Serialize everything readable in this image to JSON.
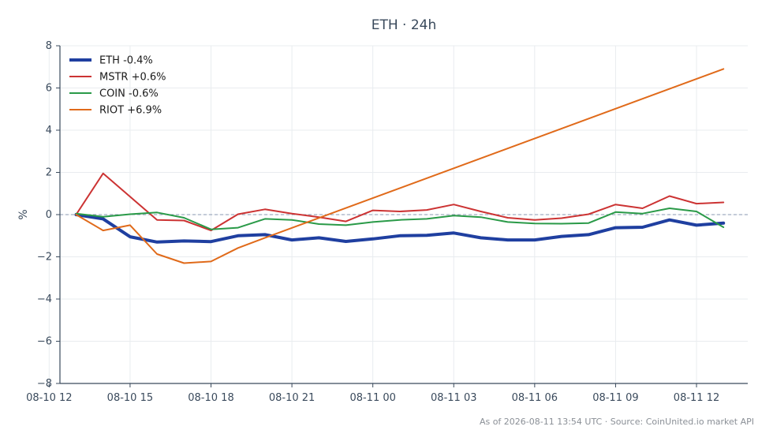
{
  "chart_data": {
    "type": "line",
    "title": "ETH · 24h",
    "ylabel": "%",
    "xlabel": "",
    "xlim": [
      "2026-08-10T12:24",
      "2026-08-11T13:54"
    ],
    "ylim": [
      -8,
      8
    ],
    "yticks": [
      -8,
      -6,
      -4,
      -2,
      0,
      2,
      4,
      6,
      8
    ],
    "xticks": [
      {
        "t": "2026-08-10T12:00",
        "label": "08-10 12"
      },
      {
        "t": "2026-08-10T15:00",
        "label": "08-10 15"
      },
      {
        "t": "2026-08-10T18:00",
        "label": "08-10 18"
      },
      {
        "t": "2026-08-10T21:00",
        "label": "08-10 21"
      },
      {
        "t": "2026-08-11T00:00",
        "label": "08-11 00"
      },
      {
        "t": "2026-08-11T03:00",
        "label": "08-11 03"
      },
      {
        "t": "2026-08-11T06:00",
        "label": "08-11 06"
      },
      {
        "t": "2026-08-11T09:00",
        "label": "08-11 09"
      },
      {
        "t": "2026-08-11T12:00",
        "label": "08-11 12"
      }
    ],
    "grid": true,
    "baseline": 0,
    "legend_position": "top-left",
    "series": [
      {
        "name": "ETH -0.4%",
        "color": "#1f3fa0",
        "x": [
          "2026-08-10T13:00",
          "2026-08-10T14:00",
          "2026-08-10T15:00",
          "2026-08-10T16:00",
          "2026-08-10T17:00",
          "2026-08-10T18:00",
          "2026-08-10T19:00",
          "2026-08-10T20:00",
          "2026-08-10T21:00",
          "2026-08-10T22:00",
          "2026-08-10T23:00",
          "2026-08-11T00:00",
          "2026-08-11T01:00",
          "2026-08-11T02:00",
          "2026-08-11T03:00",
          "2026-08-11T04:00",
          "2026-08-11T05:00",
          "2026-08-11T06:00",
          "2026-08-11T07:00",
          "2026-08-11T08:00",
          "2026-08-11T09:00",
          "2026-08-11T10:00",
          "2026-08-11T11:00",
          "2026-08-11T12:00",
          "2026-08-11T13:00"
        ],
        "values": [
          0.0,
          -0.2,
          -1.05,
          -1.3,
          -1.25,
          -1.28,
          -1.0,
          -0.95,
          -1.2,
          -1.1,
          -1.27,
          -1.15,
          -1.0,
          -0.98,
          -0.87,
          -1.1,
          -1.2,
          -1.2,
          -1.03,
          -0.95,
          -0.62,
          -0.6,
          -0.25,
          -0.5,
          -0.4
        ]
      },
      {
        "name": "MSTR +0.6%",
        "color": "#cc3333",
        "x": [
          "2026-08-10T13:00",
          "2026-08-10T14:00",
          "2026-08-10T15:00",
          "2026-08-10T16:00",
          "2026-08-10T17:00",
          "2026-08-10T18:00",
          "2026-08-10T19:00",
          "2026-08-10T20:00",
          "2026-08-10T21:00",
          "2026-08-10T22:00",
          "2026-08-10T23:00",
          "2026-08-11T00:00",
          "2026-08-11T01:00",
          "2026-08-11T02:00",
          "2026-08-11T03:00",
          "2026-08-11T04:00",
          "2026-08-11T05:00",
          "2026-08-11T06:00",
          "2026-08-11T07:00",
          "2026-08-11T08:00",
          "2026-08-11T09:00",
          "2026-08-11T10:00",
          "2026-08-11T11:00",
          "2026-08-11T12:00",
          "2026-08-11T13:00"
        ],
        "values": [
          0.0,
          1.95,
          0.85,
          -0.25,
          -0.28,
          -0.75,
          0.02,
          0.25,
          0.05,
          -0.12,
          -0.32,
          0.2,
          0.15,
          0.22,
          0.48,
          0.15,
          -0.15,
          -0.25,
          -0.17,
          0.02,
          0.48,
          0.3,
          0.88,
          0.52,
          0.58
        ]
      },
      {
        "name": "COIN -0.6%",
        "color": "#2a9a48",
        "x": [
          "2026-08-10T13:00",
          "2026-08-10T14:00",
          "2026-08-10T15:00",
          "2026-08-10T16:00",
          "2026-08-10T17:00",
          "2026-08-10T18:00",
          "2026-08-10T19:00",
          "2026-08-10T20:00",
          "2026-08-10T21:00",
          "2026-08-10T22:00",
          "2026-08-10T23:00",
          "2026-08-11T00:00",
          "2026-08-11T01:00",
          "2026-08-11T02:00",
          "2026-08-11T03:00",
          "2026-08-11T04:00",
          "2026-08-11T05:00",
          "2026-08-11T06:00",
          "2026-08-11T07:00",
          "2026-08-11T08:00",
          "2026-08-11T09:00",
          "2026-08-11T10:00",
          "2026-08-11T11:00",
          "2026-08-11T12:00",
          "2026-08-11T13:00"
        ],
        "values": [
          0.05,
          -0.1,
          0.02,
          0.1,
          -0.15,
          -0.7,
          -0.62,
          -0.2,
          -0.25,
          -0.45,
          -0.5,
          -0.35,
          -0.25,
          -0.2,
          -0.05,
          -0.12,
          -0.35,
          -0.42,
          -0.43,
          -0.4,
          0.12,
          0.05,
          0.3,
          0.15,
          -0.6
        ]
      },
      {
        "name": "RIOT +6.9%",
        "color": "#e06a1a",
        "x": [
          "2026-08-10T13:00",
          "2026-08-10T14:00",
          "2026-08-10T15:00",
          "2026-08-10T16:00",
          "2026-08-10T17:00",
          "2026-08-10T18:00",
          "2026-08-10T19:00",
          "2026-08-10T20:00",
          "2026-08-11T13:00"
        ],
        "values": [
          0.0,
          -0.75,
          -0.5,
          -1.87,
          -2.3,
          -2.22,
          -1.58,
          -1.1,
          6.9
        ]
      }
    ]
  },
  "footer": "As of 2026-08-11 13:54 UTC · Source: CoinUnited.io market API"
}
